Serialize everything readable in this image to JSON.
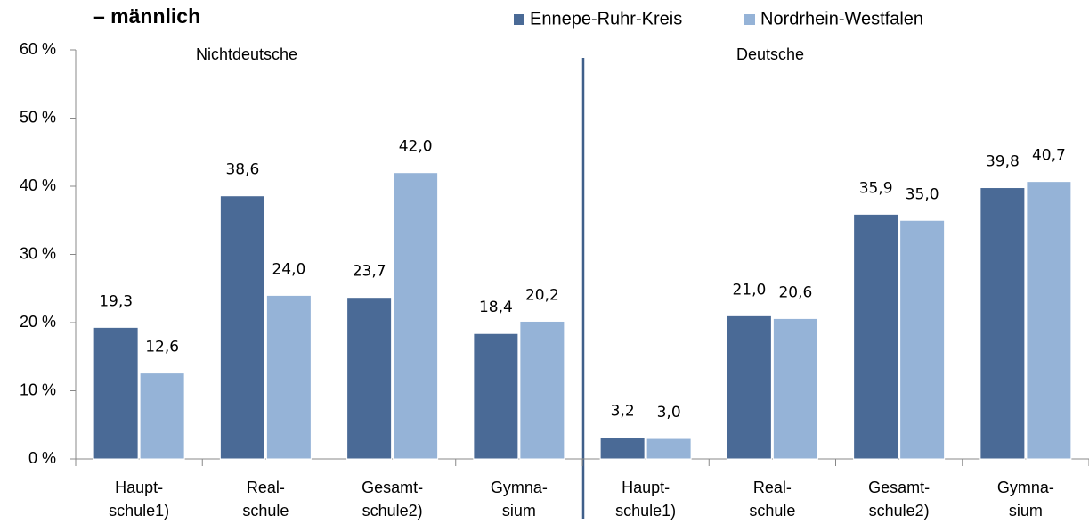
{
  "chart_data": {
    "type": "bar",
    "title": "– männlich",
    "group_labels": [
      "Nichtdeutsche",
      "Deutsche"
    ],
    "categories": [
      "Haupt-\nschule1)",
      "Real-\nschule",
      "Gesamt-\nschule2)",
      "Gymna-\nsium",
      "Haupt-\nschule1)",
      "Real-\nschule",
      "Gesamt-\nschule2)",
      "Gymna-\nsium"
    ],
    "series": [
      {
        "name": "Ennepe-Ruhr-Kreis",
        "color": "#4a6a96",
        "values": [
          19.3,
          38.6,
          23.7,
          18.4,
          3.2,
          21.0,
          35.9,
          39.8
        ],
        "value_labels": [
          "19,3",
          "38,6",
          "23,7",
          "18,4",
          "3,2",
          "21,0",
          "35,9",
          "39,8"
        ]
      },
      {
        "name": "Nordrhein-Westfalen",
        "color": "#95b3d7",
        "values": [
          12.6,
          24.0,
          42.0,
          20.2,
          3.0,
          20.6,
          35.0,
          40.7
        ],
        "value_labels": [
          "12,6",
          "24,0",
          "42,0",
          "20,2",
          "3,0",
          "20,6",
          "35,0",
          "40,7"
        ]
      }
    ],
    "ylim": [
      0,
      60
    ],
    "yticks": [
      {
        "value": 0,
        "label": "0 %"
      },
      {
        "value": 10,
        "label": "10 %"
      },
      {
        "value": 20,
        "label": "20 %"
      },
      {
        "value": 30,
        "label": "30 %"
      },
      {
        "value": 40,
        "label": "40 %"
      },
      {
        "value": 50,
        "label": "50 %"
      },
      {
        "value": 60,
        "label": "60 %"
      }
    ],
    "grid": false,
    "legend": "top-right"
  }
}
